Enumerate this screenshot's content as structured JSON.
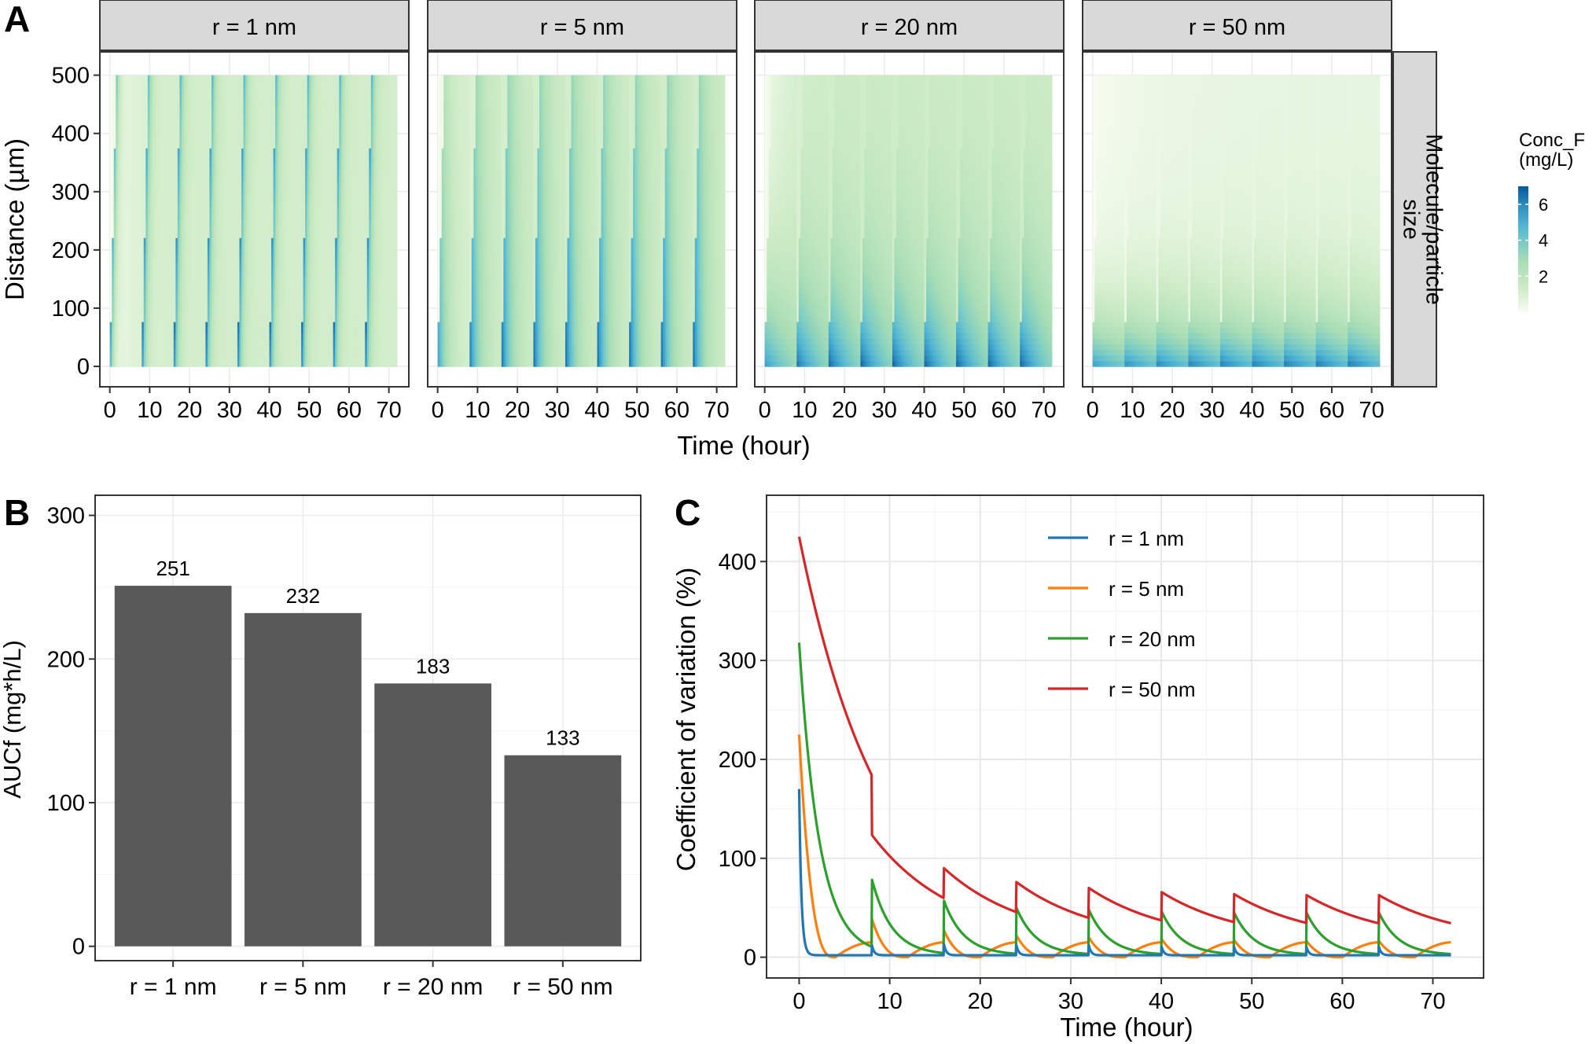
{
  "panel_labels": [
    "A",
    "B",
    "C"
  ],
  "chart_data": [
    {
      "type": "heatmap",
      "panel": "A",
      "facet_strips": [
        "r = 1 nm",
        "r = 5 nm",
        "r = 20 nm",
        "r = 50 nm"
      ],
      "facet_row_label": "Molecule/particle size",
      "xlabel": "Time (hour)",
      "ylabel": "Distance (µm)",
      "x_ticks": [
        0,
        10,
        20,
        30,
        40,
        50,
        60,
        70
      ],
      "y_ticks": [
        0,
        100,
        200,
        300,
        400,
        500
      ],
      "xlim": [
        -2.5,
        75
      ],
      "ylim": [
        -35,
        540
      ],
      "time_range": [
        0,
        72
      ],
      "distance_range": [
        0,
        500
      ],
      "dose_interval_hours": 8,
      "legend": {
        "title": "Conc_F (mg/L)",
        "ticks": [
          2,
          4,
          6
        ],
        "range": [
          0,
          7
        ],
        "colors": [
          "#f7fcf0",
          "#ccebc5",
          "#a8ddb5",
          "#7bccc4",
          "#4eb3d3",
          "#2b8cbe",
          "#08589e"
        ]
      }
    },
    {
      "type": "bar",
      "panel": "B",
      "categories": [
        "r = 1 nm",
        "r = 5 nm",
        "r = 20 nm",
        "r = 50 nm"
      ],
      "values": [
        251,
        232,
        183,
        133
      ],
      "data_labels": [
        "251",
        "232",
        "183",
        "133"
      ],
      "ylabel": "AUCf (mg*h/L)",
      "xlabel": "",
      "ylim": [
        -10,
        314
      ],
      "y_ticks": [
        0,
        100,
        200,
        300
      ],
      "color": "#595959"
    },
    {
      "type": "line",
      "panel": "C",
      "xlabel": "Time (hour)",
      "ylabel": "Coefficient of variation (%)",
      "xlim": [
        -3.6,
        75.6
      ],
      "ylim": [
        -21,
        467
      ],
      "x_ticks": [
        0,
        10,
        20,
        30,
        40,
        50,
        60,
        70
      ],
      "y_ticks": [
        0,
        100,
        200,
        300,
        400
      ],
      "grid": true,
      "legend_position": "top-center",
      "dose_interval_hours": 8,
      "series": [
        {
          "name": "r = 1 nm",
          "color": "#1f77b4",
          "peaks": [
            170,
            14,
            13,
            12,
            12,
            12,
            12,
            12,
            12
          ],
          "decay_rate": 4.0,
          "floor": 2
        },
        {
          "name": "r = 5 nm",
          "color": "#ff7f0e",
          "peaks": [
            225,
            40,
            27,
            22,
            20,
            19,
            18,
            17,
            17
          ],
          "trough_time": 4,
          "end_value": 15
        },
        {
          "name": "r = 20 nm",
          "color": "#2ca02c",
          "peaks": [
            318,
            80,
            57,
            50,
            48,
            47,
            46,
            46,
            46
          ],
          "decay_rate": 0.45,
          "floor": 2
        },
        {
          "name": "r = 50 nm",
          "color": "#d62728",
          "peaks": [
            425,
            124,
            90,
            76,
            70,
            66,
            64,
            63,
            63
          ],
          "decay_rate": 0.11,
          "floor": 14
        }
      ]
    }
  ]
}
